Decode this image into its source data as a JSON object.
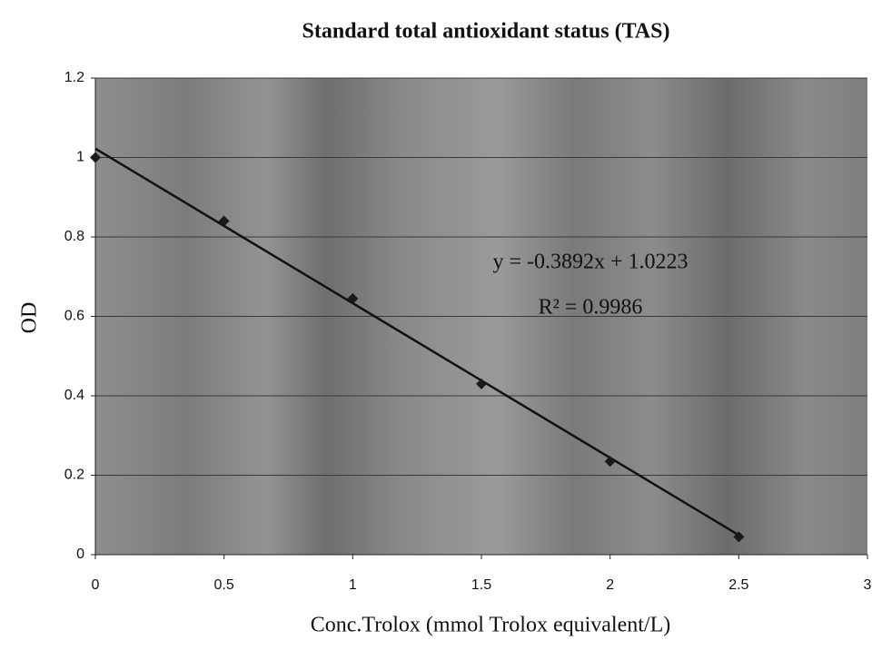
{
  "chart_data": {
    "type": "scatter",
    "title": "Standard total antioxidant status (TAS)",
    "xlabel": "Conc.Trolox (mmol Trolox equivalent/L)",
    "ylabel": "OD",
    "x": [
      0,
      0.5,
      1,
      1.5,
      2,
      2.5
    ],
    "series": [
      {
        "color": "#1a1a1a",
        "values": [
          1.0,
          0.84,
          0.645,
          0.43,
          0.235,
          0.045
        ]
      }
    ],
    "trendline": {
      "slope": -0.3892,
      "intercept": 1.0223,
      "color": "#111111"
    },
    "annotations": [
      "y = -0.3892x + 1.0223",
      "R² = 0.9986"
    ],
    "xlim": [
      0,
      3
    ],
    "xticks": [
      0,
      0.5,
      1,
      1.5,
      2,
      2.5,
      3
    ],
    "ylim": [
      0,
      1.2
    ],
    "yticks": [
      0,
      0.2,
      0.4,
      0.6,
      0.8,
      1,
      1.2
    ],
    "grid": true
  }
}
